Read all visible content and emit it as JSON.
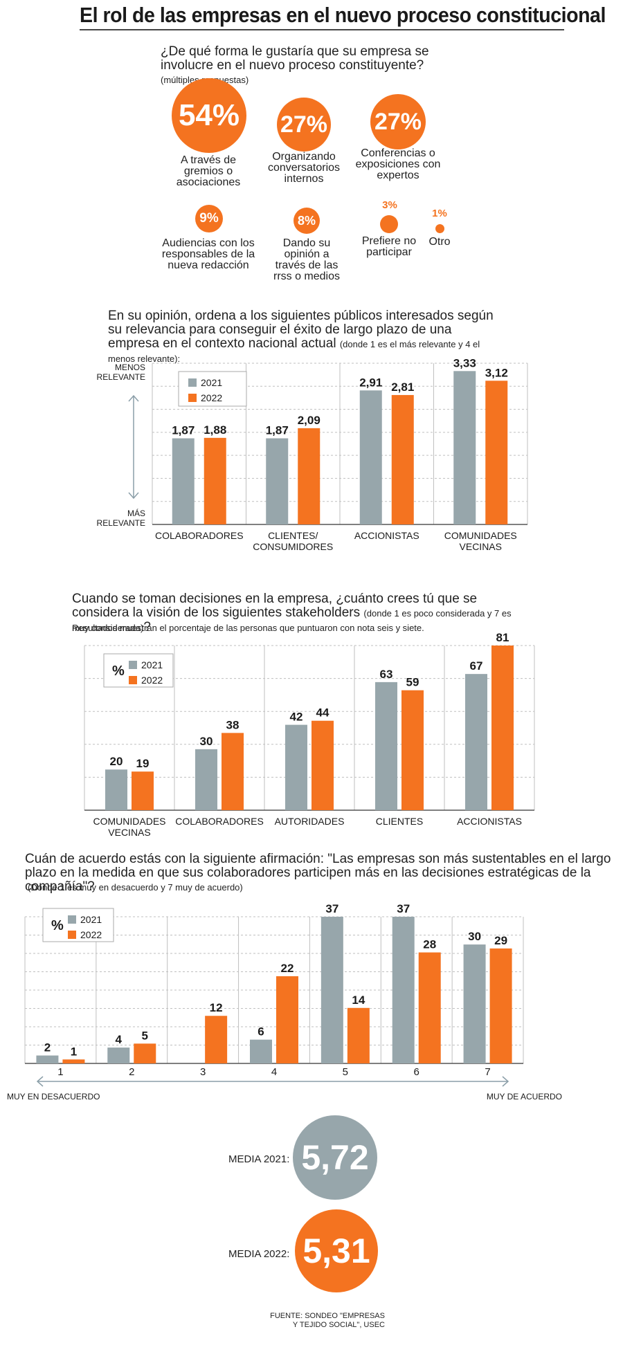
{
  "title": "El rol de las empresas en el nuevo proceso constitucional",
  "colors": {
    "y2021": "#97a6ab",
    "y2022": "#f47320",
    "grid": "#bfbfbf",
    "dark": "#1a1a1a"
  },
  "section1": {
    "question": "¿De qué forma le gustaría que su empresa se involucre en el nuevo proceso constituyente?",
    "note": "(múltiples respuestas)",
    "items": [
      {
        "value": "54%",
        "label": "A través de gremios o asociaciones"
      },
      {
        "value": "27%",
        "label": "Organizando conversatorios internos"
      },
      {
        "value": "27%",
        "label": "Conferencias o exposiciones con expertos"
      },
      {
        "value": "9%",
        "label": "Audiencias con los responsables de la nueva redacción"
      },
      {
        "value": "8%",
        "label": "Dando su opinión a través de las rrss o medios"
      },
      {
        "value": "3%",
        "label": "Prefiere no participar"
      },
      {
        "value": "1%",
        "label": "Otro"
      }
    ]
  },
  "section2": {
    "question": "En su opinión, ordena a los siguientes públicos interesados según su relevancia para conseguir el éxito de largo plazo de una empresa en el contexto nacional actual",
    "note": "(donde 1 es el más relevante y 4 el menos relevante):",
    "top_label": "MENOS RELEVANTE",
    "bottom_label": "MÁS RELEVANTE"
  },
  "section3": {
    "question": "Cuando se toman decisiones en la empresa, ¿cuánto crees tú que se considera la visión de los siguientes stakeholders",
    "note": "(donde 1 es poco considerada y 7 es muy considerada)",
    "q_end": "?",
    "subnote": "Resultados muestran el porcentaje de las personas que puntuaron con nota seis y siete."
  },
  "section4": {
    "question": "Cuán de acuerdo estás con la siguiente afirmación: \"Las empresas son más sustentables en el largo plazo en la medida en que sus colaboradores participen más en las decisiones estratégicas de la compañía\"?",
    "note": "(Donde 1 es muy en desacuerdo y 7 muy de acuerdo)",
    "left_label": "MUY EN DESACUERDO",
    "right_label": "MUY DE ACUERDO"
  },
  "media": {
    "label_2021": "MEDIA 2021:",
    "value_2021": "5,72",
    "label_2022": "MEDIA 2022:",
    "value_2022": "5,31"
  },
  "source": "FUENTE: SONDEO \"EMPRESAS Y TEJIDO SOCIAL\", USEC",
  "chart_data": [
    {
      "type": "bar",
      "categories": [
        "COLABORADORES",
        "CLIENTES/ CONSUMIDORES",
        "ACCIONISTAS",
        "COMUNIDADES VECINAS"
      ],
      "series": [
        {
          "name": "2021",
          "values": [
            1.87,
            1.87,
            2.91,
            3.33
          ],
          "labels": [
            "1,87",
            "1,87",
            "2,91",
            "3,33"
          ]
        },
        {
          "name": "2022",
          "values": [
            1.88,
            2.09,
            2.81,
            3.12
          ],
          "labels": [
            "1,88",
            "2,09",
            "2,81",
            "3,12"
          ]
        }
      ],
      "ylim": [
        0,
        3.5
      ],
      "grid": true,
      "legend": "top-left"
    },
    {
      "type": "bar",
      "categories": [
        "COMUNIDADES VECINAS",
        "COLABORADORES",
        "AUTORIDADES",
        "CLIENTES",
        "ACCIONISTAS"
      ],
      "series": [
        {
          "name": "2021",
          "values": [
            20,
            30,
            42,
            63,
            67
          ]
        },
        {
          "name": "2022",
          "values": [
            19,
            38,
            44,
            59,
            81
          ]
        }
      ],
      "legend_unit": "%",
      "ylim": [
        0,
        81
      ],
      "grid": true,
      "legend": "top-left"
    },
    {
      "type": "bar",
      "categories": [
        "1",
        "2",
        "3",
        "4",
        "5",
        "6",
        "7"
      ],
      "series": [
        {
          "name": "2021",
          "values": [
            2,
            4,
            null,
            6,
            37,
            37,
            30
          ]
        },
        {
          "name": "2022",
          "values": [
            1,
            5,
            12,
            22,
            14,
            28,
            29
          ]
        }
      ],
      "legend_unit": "%",
      "ylim": [
        0,
        37
      ],
      "grid": true,
      "legend": "top-left"
    }
  ]
}
